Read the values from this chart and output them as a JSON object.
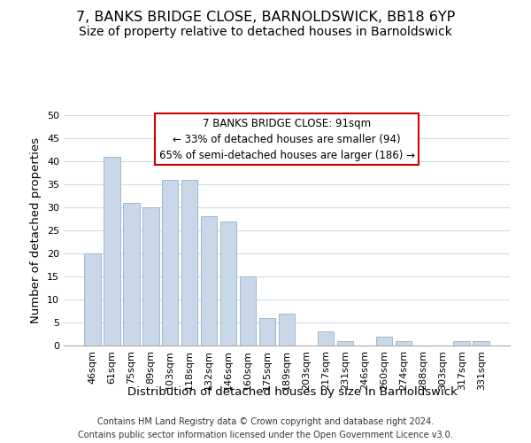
{
  "title": "7, BANKS BRIDGE CLOSE, BARNOLDSWICK, BB18 6YP",
  "subtitle": "Size of property relative to detached houses in Barnoldswick",
  "xlabel": "Distribution of detached houses by size in Barnoldswick",
  "ylabel": "Number of detached properties",
  "categories": [
    "46sqm",
    "61sqm",
    "75sqm",
    "89sqm",
    "103sqm",
    "118sqm",
    "132sqm",
    "146sqm",
    "160sqm",
    "175sqm",
    "189sqm",
    "203sqm",
    "217sqm",
    "231sqm",
    "246sqm",
    "260sqm",
    "274sqm",
    "288sqm",
    "303sqm",
    "317sqm",
    "331sqm"
  ],
  "values": [
    20,
    41,
    31,
    30,
    36,
    36,
    28,
    27,
    15,
    6,
    7,
    0,
    3,
    1,
    0,
    2,
    1,
    0,
    0,
    1,
    1
  ],
  "bar_color": "#c8d8e8",
  "bar_edge_color": "#a0b8cc",
  "ylim": [
    0,
    50
  ],
  "yticks": [
    0,
    5,
    10,
    15,
    20,
    25,
    30,
    35,
    40,
    45,
    50
  ],
  "annotation_box_text": [
    "7 BANKS BRIDGE CLOSE: 91sqm",
    "← 33% of detached houses are smaller (94)",
    "65% of semi-detached houses are larger (186) →"
  ],
  "annotation_box_color": "#ffffff",
  "annotation_box_edge_color": "#cc0000",
  "footer_line1": "Contains HM Land Registry data © Crown copyright and database right 2024.",
  "footer_line2": "Contains public sector information licensed under the Open Government Licence v3.0.",
  "background_color": "#ffffff",
  "grid_color": "#d0dce8",
  "title_fontsize": 11.5,
  "subtitle_fontsize": 10,
  "axis_label_fontsize": 9.5,
  "tick_fontsize": 8,
  "annotation_fontsize": 8.5,
  "footer_fontsize": 7
}
